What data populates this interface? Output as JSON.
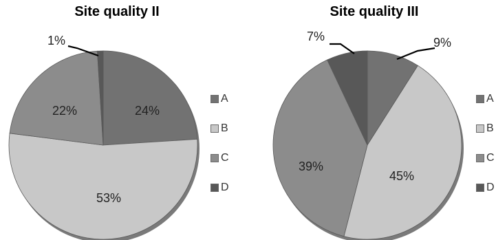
{
  "chart_data": [
    {
      "type": "pie",
      "title": "Site quality II",
      "categories": [
        "A",
        "B",
        "C",
        "D"
      ],
      "values": [
        24,
        53,
        22,
        1
      ],
      "data_labels": [
        "24%",
        "53%",
        "22%",
        "1%"
      ],
      "colors": [
        "#727272",
        "#c8c8c8",
        "#8c8c8c",
        "#585858"
      ],
      "legend": "right"
    },
    {
      "type": "pie",
      "title": "Site quality III",
      "categories": [
        "A",
        "B",
        "C",
        "D"
      ],
      "values": [
        9,
        45,
        39,
        7
      ],
      "data_labels": [
        "9%",
        "45%",
        "39%",
        "7%"
      ],
      "colors": [
        "#727272",
        "#c8c8c8",
        "#8c8c8c",
        "#585858"
      ],
      "legend": "right"
    }
  ]
}
